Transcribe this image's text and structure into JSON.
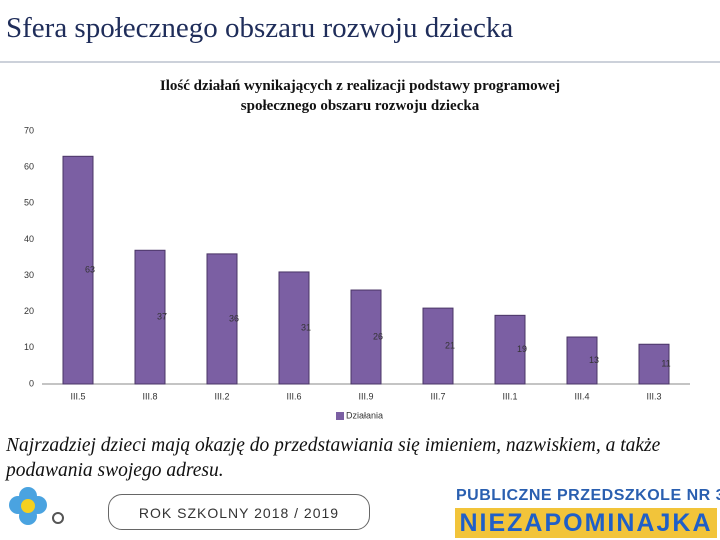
{
  "slide_title": "Sfera społecznego obszaru rozwoju dziecka",
  "chart_data": {
    "type": "bar",
    "title": "Ilość działań wynikających z realizacji podstawy programowej społecznego obszaru rozwoju dziecka",
    "categories": [
      "III.5",
      "III.8",
      "III.2",
      "III.6",
      "III.9",
      "III.7",
      "III.1",
      "III.4",
      "III.3"
    ],
    "series": [
      {
        "name": "Działania",
        "color": "#7b5fa3",
        "values": [
          63,
          37,
          36,
          31,
          26,
          21,
          19,
          13,
          11
        ]
      }
    ],
    "ylim": [
      0,
      70
    ],
    "yticks": [
      0,
      10,
      20,
      30,
      40,
      50,
      60,
      70
    ],
    "grid": false,
    "legend": "bottom"
  },
  "caption": "Najrzadziej dzieci mają okazję do przedstawiania się imieniem, nazwiskiem, a także podawania swojego adresu.",
  "footer": {
    "school_year": "ROK SZKOLNY 2018 / 2019",
    "logo_line1": "PUBLICZNE PRZEDSZKOLE NR 3",
    "logo_line2": "NIEZAPOMINAJKA"
  }
}
